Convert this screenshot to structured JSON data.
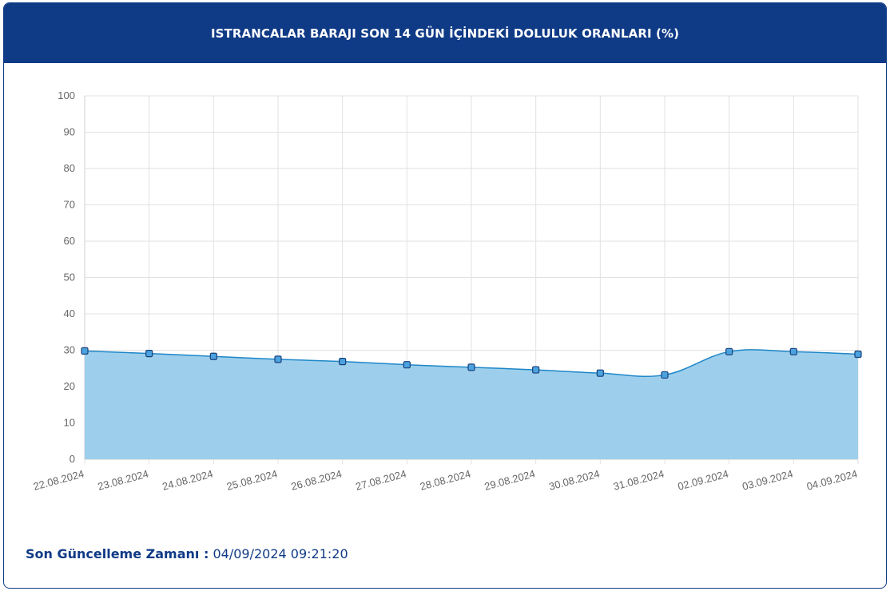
{
  "header": {
    "title": "ISTRANCALAR BARAJI SON 14 GÜN İÇİNDEKİ DOLULUK ORANLARI (%)"
  },
  "footer": {
    "label": "Son Güncelleme Zamanı :",
    "value": "04/09/2024 09:21:20"
  },
  "colors": {
    "header_bg": "#0f3a86",
    "line": "#1e86c8",
    "fill": "#9dcfec",
    "marker": "#4aa3df",
    "marker_stroke": "#1a3f7a"
  },
  "chart_data": {
    "type": "area",
    "title": "ISTRANCALAR BARAJI SON 14 GÜN İÇİNDEKİ DOLULUK ORANLARI (%)",
    "x": [
      "22.08.2024",
      "23.08.2024",
      "24.08.2024",
      "25.08.2024",
      "26.08.2024",
      "27.08.2024",
      "28.08.2024",
      "29.08.2024",
      "30.08.2024",
      "31.08.2024",
      "02.09.2024",
      "03.09.2024",
      "04.09.2024"
    ],
    "values": [
      29.8,
      29.1,
      28.3,
      27.5,
      26.9,
      26.0,
      25.3,
      24.6,
      23.7,
      23.2,
      29.6,
      29.6,
      28.9
    ],
    "ylim": [
      0,
      100
    ],
    "yticks": [
      0,
      10,
      20,
      30,
      40,
      50,
      60,
      70,
      80,
      90,
      100
    ],
    "grid": true,
    "legend": "none"
  }
}
